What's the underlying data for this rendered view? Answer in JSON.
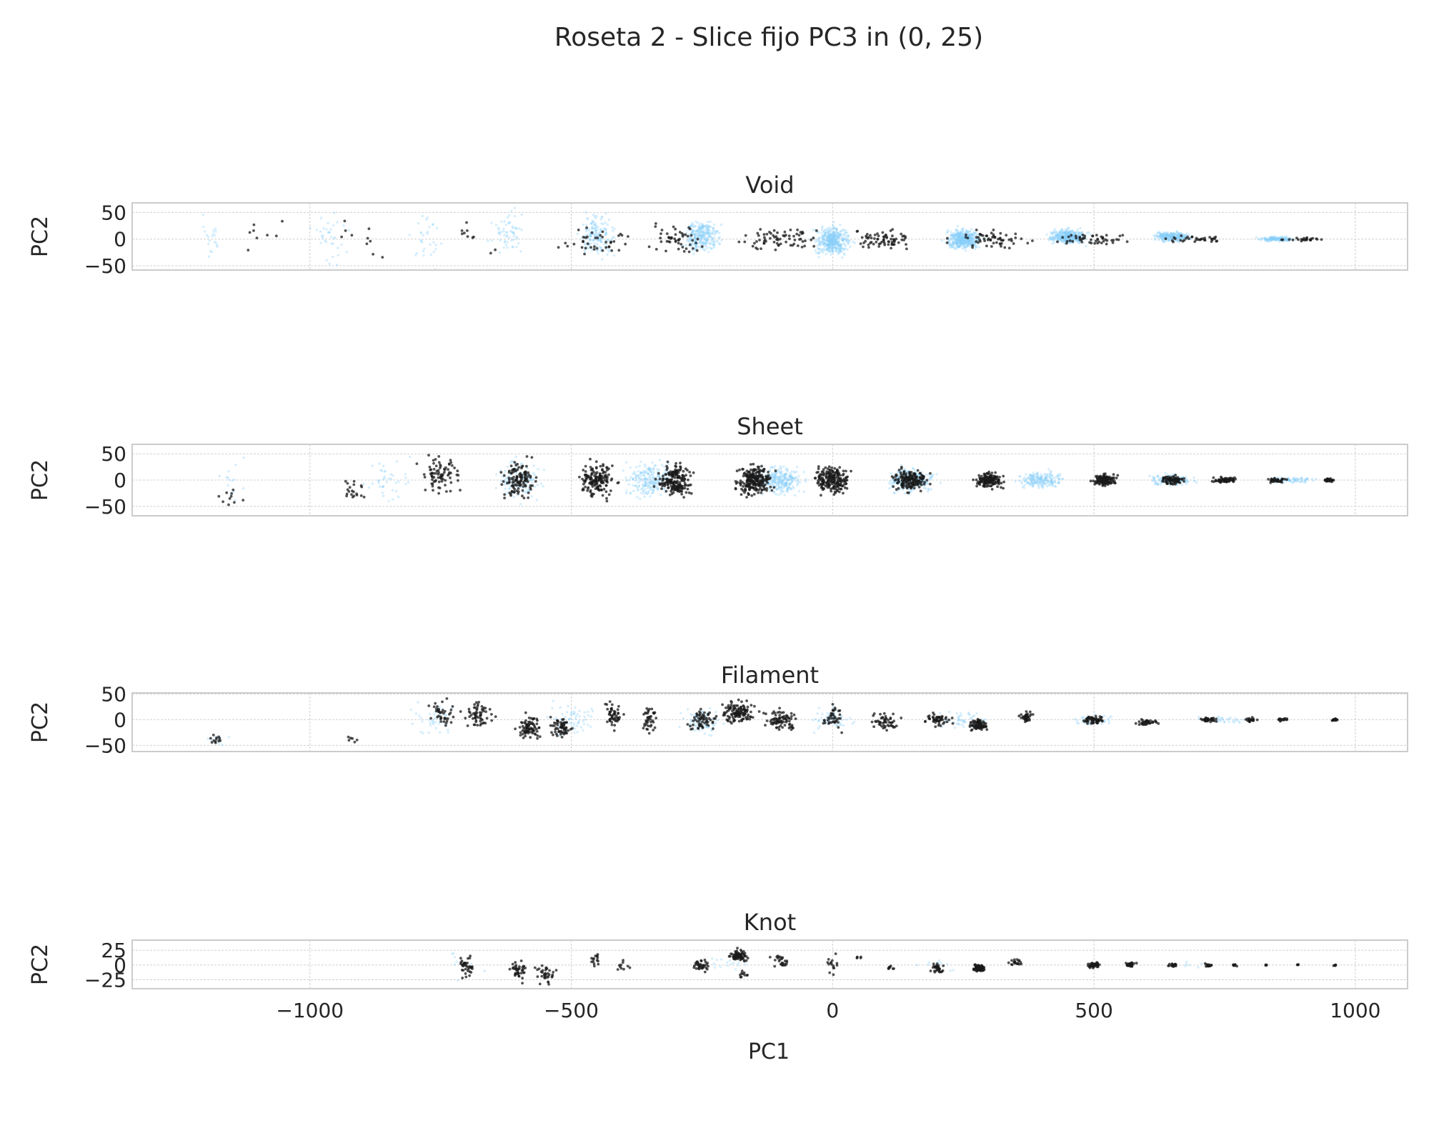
{
  "figure": {
    "title": "Roseta 2 - Slice fijo PC3 in (0, 25)",
    "xlabel": "PC1",
    "x_ticks": [
      -1000,
      -500,
      0,
      500,
      1000
    ],
    "x_tick_labels": [
      "−1000",
      "−500",
      "0",
      "500",
      "1000"
    ],
    "xlim": [
      -1340,
      1100
    ]
  },
  "colors": {
    "background_points": "#87cefa",
    "highlight_points": "#1a1a1a",
    "axes_edge": "#cccccc",
    "grid": "#d0d0d0",
    "text": "#262626"
  },
  "chart_data": [
    {
      "type": "scatter",
      "title": "Void",
      "xlabel": "",
      "ylabel": "PC2",
      "ylim": [
        -58,
        68
      ],
      "y_ticks": [
        -50,
        0,
        50
      ],
      "y_tick_labels": [
        "−50",
        "0",
        "50"
      ],
      "grid": true,
      "series": [
        {
          "role": "all points",
          "color": "#87cefa",
          "clusters": [
            [
              -1190,
              0,
              20,
              40,
              20
            ],
            [
              -960,
              0,
              30,
              45,
              35
            ],
            [
              -780,
              0,
              30,
              45,
              30
            ],
            [
              -620,
              15,
              30,
              35,
              60
            ],
            [
              -450,
              5,
              30,
              35,
              160
            ],
            [
              -250,
              5,
              30,
              28,
              280
            ],
            [
              0,
              -3,
              30,
              24,
              420
            ],
            [
              250,
              0,
              30,
              17,
              450
            ],
            [
              450,
              5,
              30,
              12,
              420
            ],
            [
              650,
              5,
              30,
              8,
              280
            ],
            [
              850,
              0,
              30,
              4,
              160
            ]
          ]
        },
        {
          "role": "class points",
          "color": "#1a1a1a",
          "clusters": [
            [
              -1100,
              15,
              40,
              40,
              8
            ],
            [
              -900,
              0,
              50,
              40,
              10
            ],
            [
              -700,
              0,
              50,
              35,
              10
            ],
            [
              -450,
              0,
              60,
              25,
              40
            ],
            [
              -300,
              0,
              50,
              25,
              50
            ],
            [
              -100,
              0,
              60,
              20,
              70
            ],
            [
              100,
              0,
              60,
              18,
              70
            ],
            [
              300,
              0,
              60,
              14,
              60
            ],
            [
              500,
              0,
              60,
              10,
              50
            ],
            [
              700,
              0,
              60,
              6,
              35
            ],
            [
              900,
              0,
              50,
              3,
              25
            ]
          ]
        }
      ]
    },
    {
      "type": "scatter",
      "title": "Sheet",
      "xlabel": "",
      "ylabel": "PC2",
      "ylim": [
        -68,
        68
      ],
      "y_ticks": [
        -50,
        0,
        50
      ],
      "y_tick_labels": [
        "−50",
        "0",
        "50"
      ],
      "grid": true,
      "series": [
        {
          "role": "all points",
          "color": "#87cefa",
          "clusters": [
            [
              -1150,
              0,
              30,
              40,
              15
            ],
            [
              -850,
              0,
              40,
              40,
              40
            ],
            [
              -600,
              0,
              40,
              35,
              120
            ],
            [
              -350,
              0,
              40,
              30,
              220
            ],
            [
              -100,
              0,
              40,
              25,
              280
            ],
            [
              150,
              0,
              40,
              20,
              250
            ],
            [
              400,
              0,
              40,
              15,
              200
            ],
            [
              650,
              0,
              40,
              10,
              150
            ],
            [
              880,
              0,
              40,
              5,
              80
            ]
          ]
        },
        {
          "role": "class points",
          "color": "#1a1a1a",
          "clusters": [
            [
              -1150,
              -30,
              30,
              20,
              10
            ],
            [
              -920,
              -20,
              30,
              25,
              20
            ],
            [
              -750,
              10,
              30,
              30,
              80
            ],
            [
              -600,
              0,
              30,
              30,
              120
            ],
            [
              -450,
              0,
              30,
              30,
              160
            ],
            [
              -300,
              0,
              30,
              28,
              200
            ],
            [
              -150,
              0,
              30,
              25,
              230
            ],
            [
              0,
              0,
              30,
              22,
              200
            ],
            [
              150,
              0,
              30,
              18,
              170
            ],
            [
              300,
              0,
              25,
              15,
              140
            ],
            [
              520,
              0,
              20,
              10,
              120
            ],
            [
              650,
              0,
              20,
              7,
              80
            ],
            [
              750,
              0,
              20,
              5,
              60
            ],
            [
              850,
              0,
              15,
              4,
              40
            ],
            [
              950,
              0,
              10,
              3,
              40
            ]
          ]
        }
      ]
    },
    {
      "type": "scatter",
      "title": "Filament",
      "xlabel": "",
      "ylabel": "PC2",
      "ylim": [
        -62,
        52
      ],
      "y_ticks": [
        -50,
        0,
        50
      ],
      "y_tick_labels": [
        "−50",
        "0",
        "50"
      ],
      "grid": true,
      "series": [
        {
          "role": "all points",
          "color": "#87cefa",
          "clusters": [
            [
              -1180,
              -40,
              30,
              10,
              10
            ],
            [
              -760,
              0,
              40,
              30,
              40
            ],
            [
              -500,
              0,
              40,
              30,
              60
            ],
            [
              -250,
              0,
              40,
              25,
              80
            ],
            [
              0,
              0,
              40,
              20,
              60
            ],
            [
              250,
              0,
              40,
              15,
              50
            ],
            [
              500,
              0,
              40,
              10,
              40
            ],
            [
              750,
              0,
              40,
              6,
              30
            ]
          ]
        },
        {
          "role": "class points",
          "color": "#1a1a1a",
          "clusters": [
            [
              -1180,
              -40,
              25,
              10,
              12
            ],
            [
              -920,
              -40,
              15,
              10,
              6
            ],
            [
              -750,
              10,
              25,
              25,
              40
            ],
            [
              -680,
              10,
              25,
              25,
              60
            ],
            [
              -580,
              -15,
              20,
              20,
              80
            ],
            [
              -520,
              -15,
              20,
              20,
              60
            ],
            [
              -420,
              10,
              15,
              25,
              50
            ],
            [
              -350,
              0,
              15,
              25,
              40
            ],
            [
              -250,
              0,
              25,
              20,
              60
            ],
            [
              -180,
              15,
              30,
              20,
              120
            ],
            [
              -100,
              0,
              30,
              20,
              80
            ],
            [
              0,
              5,
              15,
              20,
              40
            ],
            [
              100,
              -5,
              25,
              15,
              50
            ],
            [
              200,
              0,
              20,
              12,
              50
            ],
            [
              280,
              -10,
              15,
              10,
              80
            ],
            [
              370,
              5,
              10,
              8,
              40
            ],
            [
              500,
              0,
              20,
              8,
              60
            ],
            [
              600,
              -5,
              20,
              6,
              40
            ],
            [
              720,
              0,
              15,
              5,
              35
            ],
            [
              800,
              0,
              10,
              4,
              20
            ],
            [
              860,
              0,
              10,
              3,
              15
            ],
            [
              960,
              0,
              5,
              2,
              15
            ]
          ]
        }
      ]
    },
    {
      "type": "scatter",
      "title": "Knot",
      "xlabel": "PC1",
      "ylabel": "PC2",
      "ylim": [
        -40,
        42
      ],
      "y_ticks": [
        -25,
        0,
        25
      ],
      "y_tick_labels": [
        "−25",
        "0",
        "25"
      ],
      "grid": true,
      "series": [
        {
          "role": "all points",
          "color": "#87cefa",
          "clusters": [
            [
              -700,
              0,
              30,
              20,
              10
            ],
            [
              -200,
              5,
              40,
              15,
              15
            ],
            [
              200,
              0,
              40,
              12,
              10
            ],
            [
              700,
              0,
              40,
              6,
              8
            ]
          ]
        },
        {
          "role": "class points",
          "color": "#1a1a1a",
          "clusters": [
            [
              -700,
              0,
              15,
              20,
              40
            ],
            [
              -600,
              -10,
              15,
              15,
              40
            ],
            [
              -550,
              -15,
              20,
              15,
              35
            ],
            [
              -450,
              10,
              10,
              10,
              15
            ],
            [
              -400,
              0,
              10,
              10,
              10
            ],
            [
              -250,
              0,
              15,
              10,
              35
            ],
            [
              -180,
              15,
              15,
              10,
              80
            ],
            [
              -100,
              5,
              15,
              10,
              25
            ],
            [
              -170,
              -15,
              10,
              5,
              10
            ],
            [
              0,
              0,
              10,
              15,
              15
            ],
            [
              50,
              10,
              8,
              5,
              5
            ],
            [
              110,
              -5,
              8,
              5,
              8
            ],
            [
              200,
              -5,
              10,
              8,
              35
            ],
            [
              280,
              -5,
              10,
              5,
              80
            ],
            [
              350,
              5,
              10,
              5,
              20
            ],
            [
              500,
              0,
              10,
              5,
              40
            ],
            [
              570,
              0,
              10,
              4,
              30
            ],
            [
              650,
              0,
              10,
              3,
              20
            ],
            [
              720,
              0,
              8,
              3,
              15
            ],
            [
              770,
              0,
              5,
              2,
              8
            ],
            [
              830,
              0,
              3,
              1,
              4
            ],
            [
              890,
              0,
              3,
              1,
              4
            ],
            [
              960,
              0,
              3,
              1,
              5
            ]
          ]
        }
      ]
    }
  ]
}
